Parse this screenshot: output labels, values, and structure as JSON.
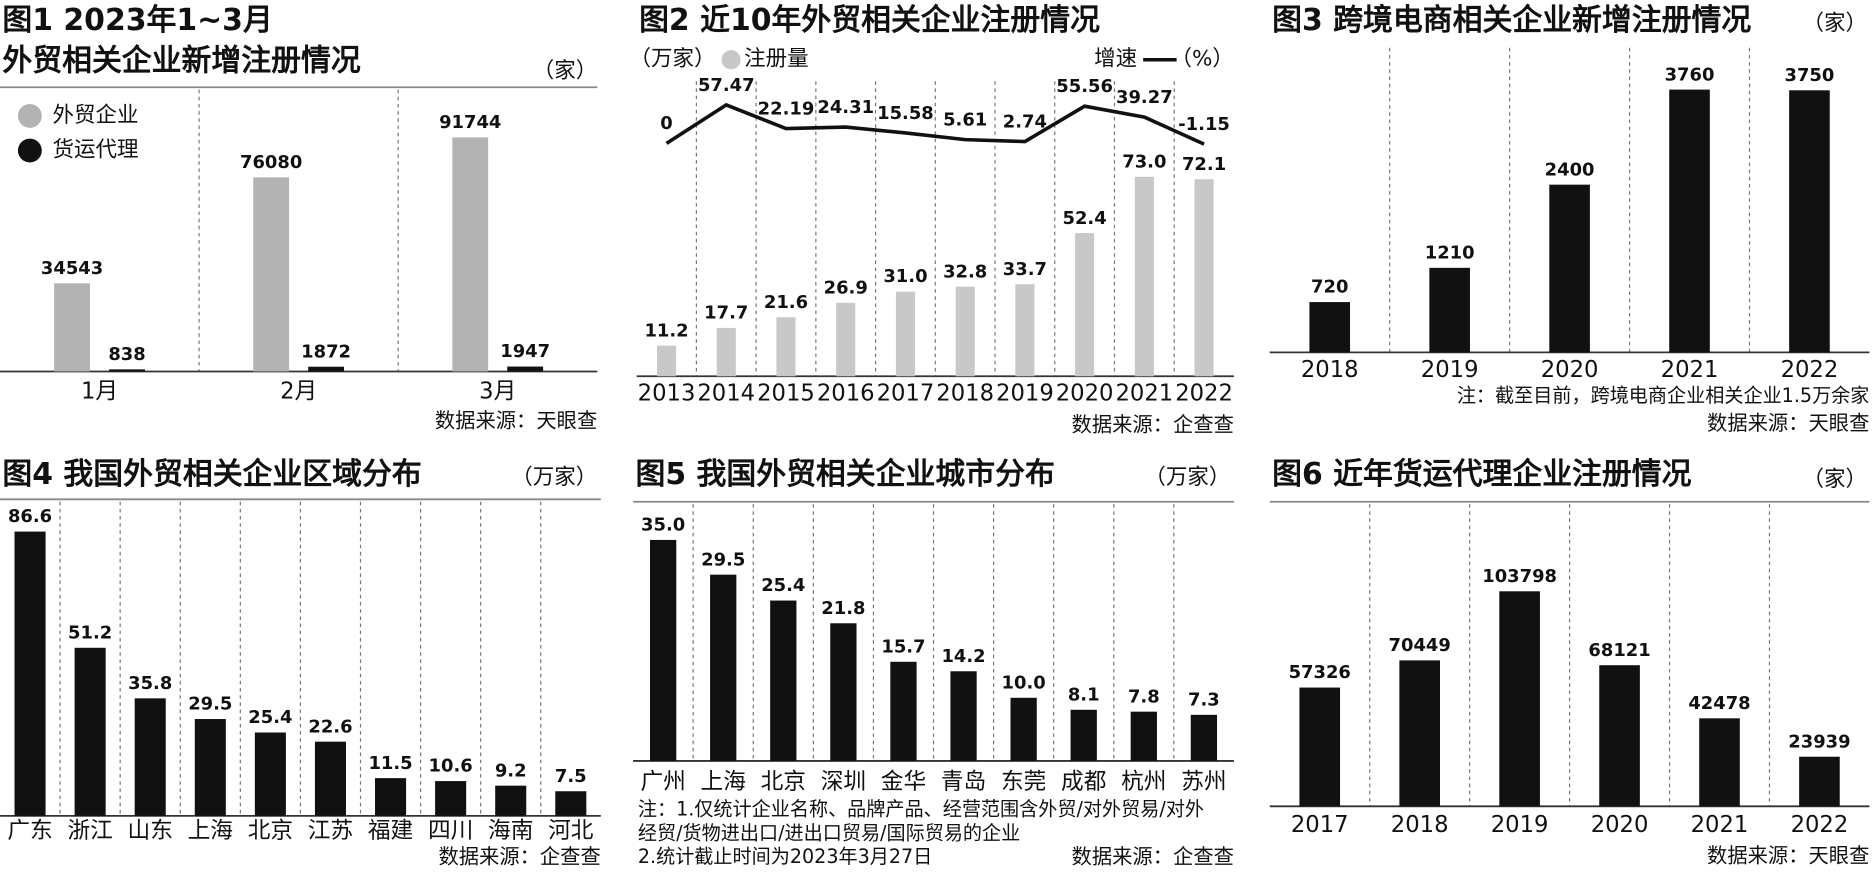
{
  "chart_data": [
    {
      "type": "bar",
      "title": "图1  2023年1~3月",
      "subtitle": "外贸相关企业新增注册情况",
      "unit": "（家）",
      "categories": [
        "1月",
        "2月",
        "3月"
      ],
      "series": [
        {
          "name": "外贸企业",
          "color": "#b3b3b3",
          "values": [
            34543,
            76080,
            91744
          ]
        },
        {
          "name": "货运代理",
          "color": "#111111",
          "values": [
            838,
            1872,
            1947
          ]
        }
      ],
      "source": "数据来源：天眼查"
    },
    {
      "type": "bar_line",
      "title": "图2 近10年外贸相关企业注册情况",
      "y_label": "（万家）",
      "y2_label": "（%）",
      "categories": [
        "2013",
        "2014",
        "2015",
        "2016",
        "2017",
        "2018",
        "2019",
        "2020",
        "2021",
        "2022"
      ],
      "series": [
        {
          "name": "注册量",
          "color": "#c8c8c8",
          "values": [
            11.2,
            17.7,
            21.6,
            26.9,
            31.0,
            32.8,
            33.7,
            52.4,
            73.0,
            72.1
          ],
          "value_labels": [
            "11.2",
            "17.7",
            "21.6",
            "26.9",
            "31.0",
            "32.8",
            "33.7",
            "52.4",
            "73.0",
            "72.1"
          ]
        },
        {
          "name": "增速",
          "color": "#111111",
          "axis": "y2",
          "values": [
            0,
            57.47,
            22.19,
            24.31,
            15.58,
            5.61,
            2.74,
            55.56,
            39.27,
            -1.15
          ]
        }
      ],
      "source": "数据来源：企查查"
    },
    {
      "type": "bar",
      "title": "图3 跨境电商相关企业新增注册情况",
      "unit": "（家）",
      "categories": [
        "2018",
        "2019",
        "2020",
        "2021",
        "2022"
      ],
      "series": [
        {
          "color": "#111111",
          "values": [
            720,
            1210,
            2400,
            3760,
            3750
          ]
        }
      ],
      "notes": [
        "注：截至目前，跨境电商企业相关企业1.5万余家"
      ],
      "source": "数据来源：天眼查"
    },
    {
      "type": "bar",
      "title": "图4 我国外贸相关企业区域分布",
      "unit": "（万家）",
      "categories": [
        "广东",
        "浙江",
        "山东",
        "上海",
        "北京",
        "江苏",
        "福建",
        "四川",
        "海南",
        "河北"
      ],
      "series": [
        {
          "color": "#111111",
          "values": [
            86.6,
            51.2,
            35.8,
            29.5,
            25.4,
            22.6,
            11.5,
            10.6,
            9.2,
            7.5
          ]
        }
      ],
      "source": "数据来源：企查查"
    },
    {
      "type": "bar",
      "title": "图5 我国外贸相关企业城市分布",
      "unit": "（万家）",
      "categories": [
        "广州",
        "上海",
        "北京",
        "深圳",
        "金华",
        "青岛",
        "东莞",
        "成都",
        "杭州",
        "苏州"
      ],
      "series": [
        {
          "color": "#111111",
          "values": [
            35.0,
            29.5,
            25.4,
            21.8,
            15.7,
            14.2,
            10.0,
            8.1,
            7.8,
            7.3
          ],
          "value_labels": [
            "35.0",
            "29.5",
            "25.4",
            "21.8",
            "15.7",
            "14.2",
            "10.0",
            "8.1",
            "7.8",
            "7.3"
          ]
        }
      ],
      "notes": [
        "注：1.仅统计企业名称、品牌产品、经营范围含外贸/对外贸易/对外",
        "经贸/货物进出口/进出口贸易/国际贸易的企业",
        "2.统计截止时间为2023年3月27日"
      ],
      "source": "数据来源：企查查"
    },
    {
      "type": "bar",
      "title": "图6 近年货运代理企业注册情况",
      "unit": "（家）",
      "categories": [
        "2017",
        "2018",
        "2019",
        "2020",
        "2021",
        "2022"
      ],
      "series": [
        {
          "color": "#111111",
          "values": [
            57326,
            70449,
            103798,
            68121,
            42478,
            23939
          ]
        }
      ],
      "source": "数据来源：天眼查"
    }
  ]
}
